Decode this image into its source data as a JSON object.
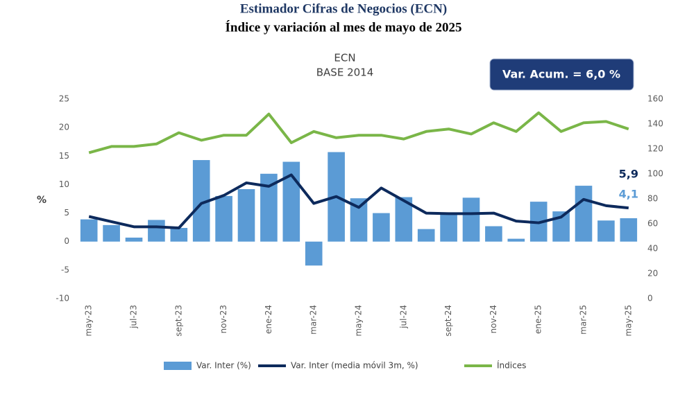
{
  "chart_data": {
    "type": "combo",
    "title": "Estimador Cifras de Negocios (ECN)",
    "subtitle": "Índice y variación al mes de mayo de 2025",
    "chart_title": "ECN",
    "chart_subtitle": "BASE 2014",
    "annotation": "Var. Acum. = 6,0 %",
    "ylabel": "%",
    "categories": [
      "may-23",
      null,
      "jul-23",
      null,
      "sept-23",
      null,
      "nov-23",
      null,
      "ene-24",
      null,
      "mar-24",
      null,
      "may-24",
      null,
      "jul-24",
      null,
      "sept-24",
      null,
      "nov-24",
      null,
      "ene-25",
      null,
      "mar-25",
      null,
      "may-25"
    ],
    "ylim": [
      -10,
      25
    ],
    "yticks": [
      -10,
      -5,
      0,
      5,
      10,
      15,
      20,
      25
    ],
    "y2lim": [
      0,
      160
    ],
    "y2ticks": [
      0,
      20,
      40,
      60,
      80,
      100,
      120,
      140,
      160
    ],
    "series": [
      {
        "name": "Var. Inter (%)",
        "type": "bar",
        "color": "#5b9bd5",
        "values": [
          3.9,
          2.9,
          0.7,
          3.8,
          2.4,
          14.3,
          8.0,
          9.2,
          11.9,
          14.0,
          -4.2,
          15.7,
          7.6,
          5.0,
          7.8,
          2.2,
          4.9,
          7.7,
          2.7,
          0.5,
          7.0,
          5.3,
          9.8,
          3.7,
          4.1
        ],
        "value_labels": [
          null,
          null,
          null,
          null,
          null,
          null,
          null,
          null,
          null,
          null,
          null,
          null,
          null,
          null,
          null,
          null,
          null,
          null,
          null,
          null,
          null,
          null,
          null,
          null,
          "4,1"
        ]
      },
      {
        "name": "Var. Inter (media móvil 3m, %)",
        "type": "line",
        "color": "#0d2a5c",
        "values": [
          4.4,
          3.5,
          2.6,
          2.6,
          2.4,
          6.7,
          8.1,
          10.3,
          9.7,
          11.7,
          6.7,
          7.9,
          6.0,
          9.4,
          7.2,
          5.0,
          4.9,
          4.9,
          5.0,
          3.6,
          3.3,
          4.3,
          7.4,
          6.3,
          5.9
        ],
        "value_labels": [
          null,
          null,
          null,
          null,
          null,
          null,
          null,
          null,
          null,
          null,
          null,
          null,
          null,
          null,
          null,
          null,
          null,
          null,
          null,
          null,
          null,
          null,
          null,
          null,
          "5,9"
        ]
      },
      {
        "name": "Índices",
        "type": "line",
        "axis": "y2",
        "color": "#7ab648",
        "values": [
          117,
          122,
          122,
          124,
          133,
          127,
          131,
          131,
          148,
          125,
          134,
          129,
          131,
          131,
          128,
          134,
          136,
          132,
          141,
          134,
          149,
          134,
          141,
          142,
          136
        ]
      }
    ]
  }
}
